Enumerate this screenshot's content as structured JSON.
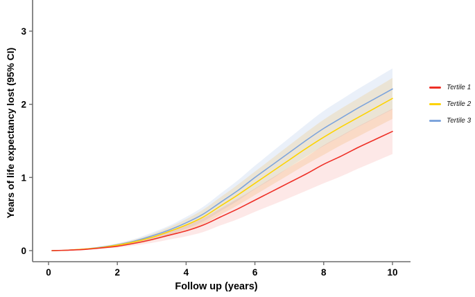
{
  "figure": {
    "background": "#ffffff",
    "axis_color": "#6b6b6b",
    "tick_label_color": "#000000"
  },
  "chart_data": {
    "type": "line",
    "title": "",
    "xlabel": "Follow up (years)",
    "ylabel": "Years of life expectancy lost (95% CI)",
    "xlim": [
      -0.46,
      10.52
    ],
    "ylim": [
      -0.15,
      3.42
    ],
    "x_ticks": [
      0,
      2,
      4,
      6,
      8,
      10
    ],
    "y_ticks": [
      0,
      1,
      2,
      3
    ],
    "grid": false,
    "legend_position": "right-outside",
    "x": [
      0.1,
      0.5,
      1,
      1.5,
      2,
      2.5,
      3,
      3.5,
      4,
      4.5,
      5,
      5.5,
      6,
      6.5,
      7,
      7.5,
      8,
      8.5,
      9,
      9.5,
      10
    ],
    "series": [
      {
        "name": "Tertile 1",
        "color": "#ee2f26",
        "band_color": "rgba(238,47,38,0.11)",
        "values": [
          0,
          0.005,
          0.015,
          0.035,
          0.06,
          0.1,
          0.15,
          0.21,
          0.27,
          0.35,
          0.46,
          0.57,
          0.69,
          0.81,
          0.93,
          1.05,
          1.18,
          1.29,
          1.41,
          1.52,
          1.63
        ],
        "upper": [
          0,
          0.005,
          0.02,
          0.045,
          0.08,
          0.13,
          0.195,
          0.27,
          0.345,
          0.445,
          0.575,
          0.71,
          0.85,
          0.995,
          1.14,
          1.28,
          1.44,
          1.57,
          1.7,
          1.82,
          1.94
        ],
        "lower": [
          0,
          0.005,
          0.01,
          0.025,
          0.04,
          0.07,
          0.105,
          0.15,
          0.195,
          0.255,
          0.345,
          0.43,
          0.53,
          0.625,
          0.72,
          0.82,
          0.92,
          1.015,
          1.12,
          1.22,
          1.32
        ]
      },
      {
        "name": "Tertile 2",
        "color": "#fdd302",
        "band_color": "rgba(243,185,85,0.22)",
        "values": [
          0,
          0.005,
          0.02,
          0.04,
          0.075,
          0.12,
          0.18,
          0.26,
          0.35,
          0.46,
          0.61,
          0.76,
          0.92,
          1.08,
          1.24,
          1.4,
          1.55,
          1.69,
          1.82,
          1.95,
          2.08
        ],
        "upper": [
          0,
          0.005,
          0.025,
          0.05,
          0.095,
          0.15,
          0.225,
          0.32,
          0.43,
          0.56,
          0.73,
          0.9,
          1.08,
          1.26,
          1.44,
          1.62,
          1.79,
          1.94,
          2.08,
          2.22,
          2.36
        ],
        "lower": [
          0,
          0.005,
          0.015,
          0.03,
          0.055,
          0.09,
          0.135,
          0.2,
          0.27,
          0.36,
          0.49,
          0.62,
          0.76,
          0.9,
          1.04,
          1.18,
          1.31,
          1.44,
          1.56,
          1.68,
          1.8
        ]
      },
      {
        "name": "Tertile 3",
        "color": "#7da4dc",
        "band_color": "rgba(125,164,220,0.16)",
        "values": [
          0,
          0.005,
          0.02,
          0.045,
          0.08,
          0.13,
          0.2,
          0.28,
          0.38,
          0.5,
          0.66,
          0.82,
          1.0,
          1.17,
          1.34,
          1.51,
          1.67,
          1.81,
          1.95,
          2.08,
          2.21
        ],
        "upper": [
          0,
          0.005,
          0.025,
          0.055,
          0.1,
          0.16,
          0.245,
          0.34,
          0.46,
          0.6,
          0.78,
          0.96,
          1.16,
          1.35,
          1.54,
          1.73,
          1.91,
          2.06,
          2.21,
          2.35,
          2.49
        ],
        "lower": [
          0,
          0.005,
          0.015,
          0.035,
          0.06,
          0.1,
          0.155,
          0.22,
          0.3,
          0.4,
          0.54,
          0.68,
          0.84,
          0.98,
          1.14,
          1.29,
          1.43,
          1.56,
          1.69,
          1.81,
          1.93
        ]
      }
    ]
  }
}
